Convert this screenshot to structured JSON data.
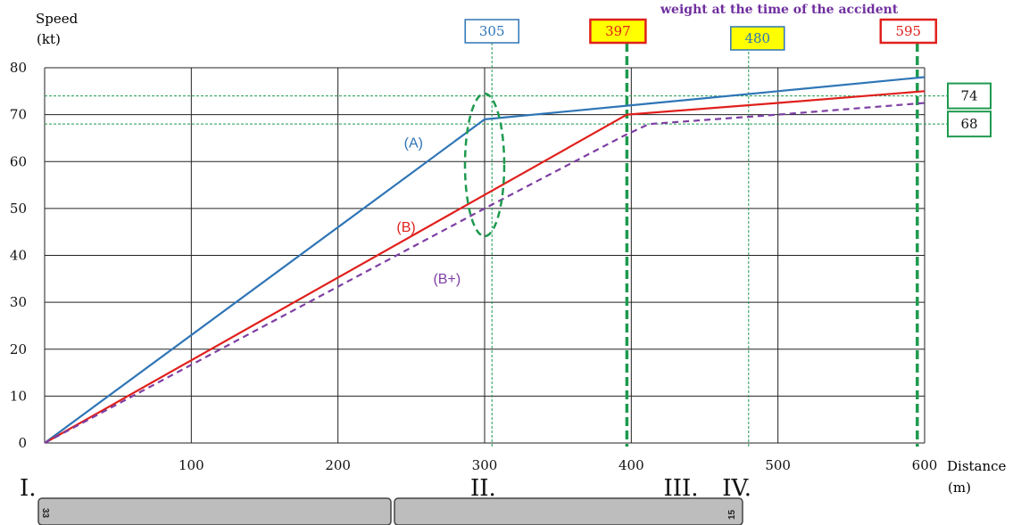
{
  "chart_data": {
    "type": "line",
    "ylabel": "Speed",
    "ylabel_unit": "(kt)",
    "xlabel": "Distance",
    "xlabel_unit": "(m)",
    "top_note": "weight at the time of the accident",
    "xlim": [
      0,
      600
    ],
    "ylim": [
      0,
      80
    ],
    "x_ticks": [
      100,
      200,
      300,
      400,
      500,
      600
    ],
    "y_ticks": [
      0,
      10,
      20,
      30,
      40,
      50,
      60,
      70,
      80
    ],
    "grid": true,
    "series": [
      {
        "name": "(A)",
        "color": "#2e75b6",
        "dash": false,
        "x": [
          0,
          300,
          400,
          500,
          600
        ],
        "y": [
          0,
          69,
          72,
          75,
          78
        ]
      },
      {
        "name": "(B)",
        "color": "#e0201c",
        "dash": false,
        "x": [
          0,
          397,
          500,
          600
        ],
        "y": [
          0,
          70,
          72.5,
          75
        ]
      },
      {
        "name": "(B+)",
        "color": "#7e3fa3",
        "dash": true,
        "x": [
          0,
          300,
          395,
          412,
          500,
          600
        ],
        "y": [
          0,
          50,
          65.5,
          68,
          70,
          72.5
        ]
      }
    ],
    "reference_lines": {
      "horizontal": [
        {
          "value": 74,
          "label": "74",
          "border": "#1e9a4f"
        },
        {
          "value": 68,
          "label": "68",
          "border": "#1e9a4f"
        }
      ],
      "vertical": [
        {
          "value": 305,
          "label": "305",
          "style": "thin",
          "box_border": "#2e75b6",
          "box_fill": "#ffffff",
          "text_color": "#2e75b6"
        },
        {
          "value": 397,
          "label": "397",
          "style": "thick",
          "box_border": "#e0201c",
          "box_fill": "#ffff00",
          "text_color": "#e0201c"
        },
        {
          "value": 480,
          "label": "480",
          "style": "thin",
          "box_border": "#2e75b6",
          "box_fill": "#ffff00",
          "text_color": "#2e75b6"
        },
        {
          "value": 595,
          "label": "595",
          "style": "thick",
          "box_border": "#e0201c",
          "box_fill": "#ffffff",
          "text_color": "#e0201c"
        }
      ]
    },
    "phase_labels": [
      {
        "label": "I.",
        "x": 0
      },
      {
        "label": "II.",
        "x": 305
      },
      {
        "label": "III.",
        "x": 480
      },
      {
        "label": "IV.",
        "x": 545
      }
    ],
    "runway": {
      "left_marking": "33",
      "right_marking": "15"
    },
    "colors": {
      "grid": "#222222",
      "ref_line": "#1e9a4f",
      "ellipse": "#1e9a4f",
      "note": "#6f2f9f"
    }
  }
}
